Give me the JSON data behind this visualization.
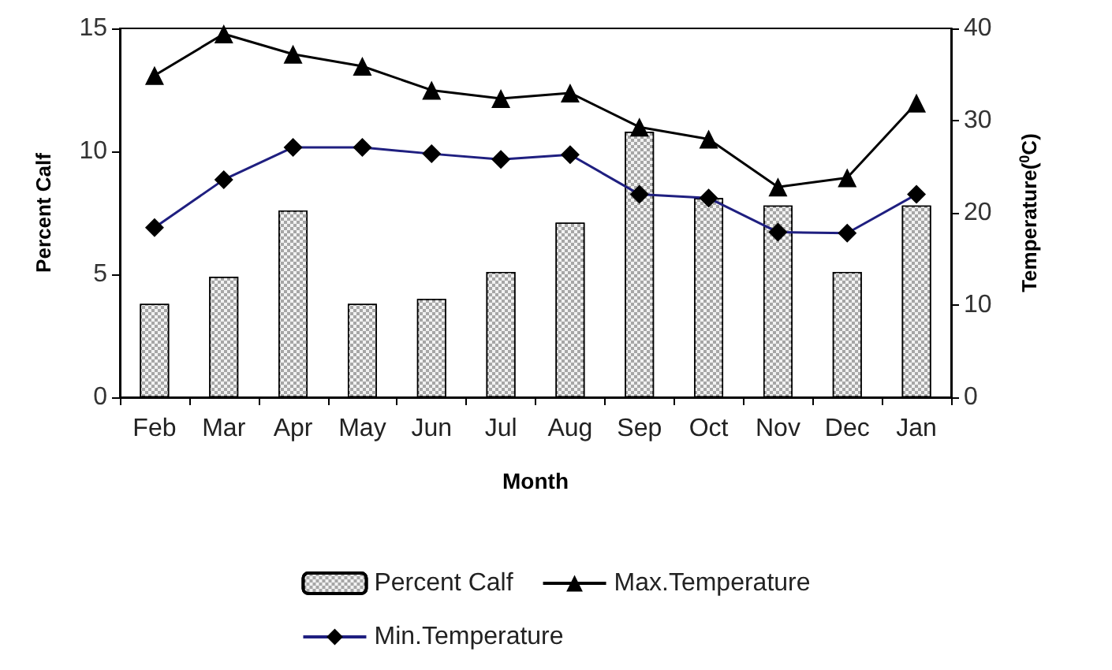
{
  "chart_data": {
    "type": "bar",
    "xlabel": "Month",
    "ylabel": "Percent Calf",
    "y2label": "Temperature($^{0}$C)",
    "categories": [
      "Feb",
      "Mar",
      "Apr",
      "May",
      "Jun",
      "Jul",
      "Aug",
      "Sep",
      "Oct",
      "Nov",
      "Dec",
      "Jan"
    ],
    "series": [
      {
        "name": "Percent Calf",
        "color": "#a6a6a6",
        "values": [
          3.8,
          4.9,
          7.6,
          3.8,
          4.0,
          5.1,
          7.1,
          10.8,
          8.1,
          7.8,
          5.1,
          7.8
        ]
      },
      {
        "name": "Max.Temperature",
        "type": "line",
        "axis": "y2",
        "marker": "triangle",
        "color": "#000000",
        "values": [
          34.9,
          39.4,
          37.2,
          35.9,
          33.3,
          32.4,
          33.0,
          29.3,
          28.0,
          22.8,
          23.8,
          31.9
        ]
      },
      {
        "name": "Min.Temperature",
        "type": "line",
        "axis": "y2",
        "marker": "diamond",
        "color": "#1f1f80",
        "values": [
          18.4,
          23.6,
          27.1,
          27.1,
          26.4,
          25.8,
          26.3,
          22.0,
          21.6,
          17.9,
          17.8,
          22.0
        ]
      }
    ],
    "ylim": [
      0,
      15
    ],
    "yticks": [
      0,
      5,
      10,
      15
    ],
    "y2lim": [
      0,
      40
    ],
    "y2ticks": [
      0,
      10,
      20,
      30,
      40
    ],
    "grid": false,
    "legend": "bottom"
  }
}
